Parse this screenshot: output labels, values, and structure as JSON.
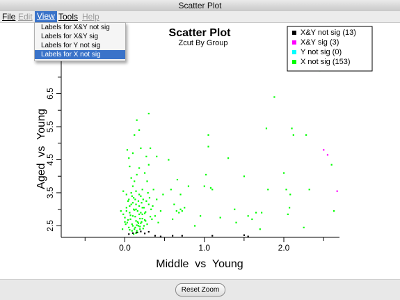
{
  "window": {
    "title": "Scatter Plot"
  },
  "menu": {
    "file": "File",
    "edit": "Edit",
    "view": "View",
    "tools": "Tools",
    "help": "Help"
  },
  "view_menu": {
    "items": [
      {
        "label": "Labels for X&Y not sig",
        "selected": false
      },
      {
        "label": "Labels for X&Y sig",
        "selected": false
      },
      {
        "label": "Labels for Y not sig",
        "selected": false
      },
      {
        "label": "Labels for X not sig",
        "selected": true
      }
    ]
  },
  "footer": {
    "reset_label": "Reset Zoom"
  },
  "chart_data": {
    "type": "scatter",
    "title": "Scatter Plot",
    "subtitle": "Zcut By Group",
    "xlabel": "Middle  vs  Young",
    "ylabel": "Aged  vs  Young",
    "xlim": [
      -0.8,
      2.7
    ],
    "ylim": [
      2.15,
      7.65
    ],
    "x_ticks": [
      0.0,
      1.0,
      2.0
    ],
    "x_tick_labels": [
      "0.0",
      "1.0",
      "2.0"
    ],
    "y_ticks": [
      2.5,
      3.5,
      4.5,
      5.5,
      6.5
    ],
    "y_tick_labels": [
      "2.5",
      "3.5",
      "4.5",
      "5.5",
      "6.5"
    ],
    "legend_position": "top-right",
    "series": [
      {
        "name": "X&Y not sig (13)",
        "color": "#000000",
        "points": [
          [
            0.05,
            2.25
          ],
          [
            0.1,
            2.28
          ],
          [
            0.15,
            2.3
          ],
          [
            0.2,
            2.33
          ],
          [
            0.25,
            2.27
          ],
          [
            0.3,
            2.32
          ],
          [
            0.38,
            2.2
          ],
          [
            0.45,
            2.18
          ],
          [
            0.6,
            2.2
          ],
          [
            0.72,
            2.2
          ],
          [
            1.1,
            2.2
          ],
          [
            1.5,
            2.22
          ],
          [
            1.55,
            2.18
          ]
        ]
      },
      {
        "name": "X&Y sig (3)",
        "color": "#ff00ff",
        "points": [
          [
            2.5,
            4.8
          ],
          [
            2.55,
            4.65
          ],
          [
            2.67,
            3.55
          ]
        ]
      },
      {
        "name": "Y not sig (0)",
        "color": "#00ffff",
        "points": []
      },
      {
        "name": "X not sig (153)",
        "color": "#00ff00",
        "points": [
          [
            -0.05,
            2.95
          ],
          [
            -0.02,
            2.85
          ],
          [
            0.0,
            2.75
          ],
          [
            0.02,
            3.05
          ],
          [
            0.03,
            2.6
          ],
          [
            0.05,
            2.45
          ],
          [
            0.06,
            2.9
          ],
          [
            0.07,
            2.7
          ],
          [
            0.08,
            3.15
          ],
          [
            0.09,
            2.55
          ],
          [
            0.1,
            2.8
          ],
          [
            0.11,
            3.0
          ],
          [
            0.12,
            2.4
          ],
          [
            0.13,
            3.3
          ],
          [
            0.14,
            2.65
          ],
          [
            0.15,
            2.35
          ],
          [
            0.16,
            2.95
          ],
          [
            0.17,
            2.5
          ],
          [
            0.18,
            3.1
          ],
          [
            0.19,
            2.72
          ],
          [
            0.2,
            2.58
          ],
          [
            0.21,
            3.2
          ],
          [
            0.22,
            2.85
          ],
          [
            0.23,
            2.42
          ],
          [
            0.24,
            3.05
          ],
          [
            0.25,
            2.68
          ],
          [
            0.26,
            2.92
          ],
          [
            0.28,
            2.55
          ],
          [
            0.3,
            3.15
          ],
          [
            0.32,
            2.78
          ],
          [
            0.0,
            2.62
          ],
          [
            0.04,
            3.25
          ],
          [
            0.06,
            2.38
          ],
          [
            0.09,
            3.4
          ],
          [
            0.12,
            2.98
          ],
          [
            0.14,
            3.55
          ],
          [
            0.16,
            2.3
          ],
          [
            0.18,
            3.45
          ],
          [
            0.2,
            2.9
          ],
          [
            0.22,
            3.6
          ],
          [
            0.24,
            2.5
          ],
          [
            0.1,
            3.7
          ],
          [
            0.12,
            3.85
          ],
          [
            0.15,
            4.05
          ],
          [
            0.08,
            3.95
          ],
          [
            0.18,
            4.25
          ],
          [
            0.05,
            4.55
          ],
          [
            0.1,
            4.7
          ],
          [
            0.2,
            4.85
          ],
          [
            0.12,
            5.25
          ],
          [
            0.15,
            5.7
          ],
          [
            0.18,
            5.4
          ],
          [
            0.3,
            5.9
          ],
          [
            0.03,
            4.8
          ],
          [
            0.06,
            4.3
          ],
          [
            -0.02,
            3.55
          ],
          [
            0.02,
            3.45
          ],
          [
            0.35,
            3.1
          ],
          [
            0.38,
            2.8
          ],
          [
            0.4,
            3.3
          ],
          [
            0.42,
            2.6
          ],
          [
            0.45,
            2.95
          ],
          [
            0.48,
            3.45
          ],
          [
            0.36,
            3.6
          ],
          [
            0.28,
            3.85
          ],
          [
            0.25,
            4.1
          ],
          [
            0.3,
            4.35
          ],
          [
            0.27,
            4.6
          ],
          [
            0.32,
            4.85
          ],
          [
            0.4,
            4.6
          ],
          [
            0.55,
            4.5
          ],
          [
            0.62,
            3.15
          ],
          [
            0.65,
            2.95
          ],
          [
            0.68,
            2.9
          ],
          [
            0.7,
            3.0
          ],
          [
            0.72,
            2.95
          ],
          [
            0.75,
            3.05
          ],
          [
            0.6,
            2.7
          ],
          [
            0.58,
            3.6
          ],
          [
            0.66,
            3.9
          ],
          [
            0.7,
            3.45
          ],
          [
            0.8,
            3.7
          ],
          [
            0.88,
            2.5
          ],
          [
            0.95,
            2.8
          ],
          [
            1.0,
            3.7
          ],
          [
            1.02,
            4.05
          ],
          [
            1.05,
            4.9
          ],
          [
            1.05,
            5.25
          ],
          [
            1.08,
            3.65
          ],
          [
            1.1,
            3.6
          ],
          [
            1.2,
            2.75
          ],
          [
            1.3,
            4.55
          ],
          [
            1.38,
            3.0
          ],
          [
            1.4,
            2.6
          ],
          [
            1.5,
            4.0
          ],
          [
            1.55,
            2.8
          ],
          [
            1.6,
            2.7
          ],
          [
            1.65,
            2.9
          ],
          [
            1.7,
            2.4
          ],
          [
            1.72,
            2.9
          ],
          [
            1.78,
            5.45
          ],
          [
            1.8,
            3.6
          ],
          [
            1.88,
            6.4
          ],
          [
            2.0,
            4.1
          ],
          [
            2.03,
            3.6
          ],
          [
            2.05,
            2.85
          ],
          [
            2.07,
            3.05
          ],
          [
            2.08,
            3.45
          ],
          [
            2.1,
            5.45
          ],
          [
            2.12,
            5.25
          ],
          [
            2.25,
            2.45
          ],
          [
            2.28,
            5.25
          ],
          [
            2.32,
            3.6
          ],
          [
            2.45,
            7.2
          ],
          [
            2.6,
            4.35
          ],
          [
            2.63,
            2.95
          ],
          [
            -0.03,
            2.4
          ],
          [
            0.01,
            2.55
          ],
          [
            0.04,
            2.68
          ],
          [
            0.07,
            2.82
          ],
          [
            0.1,
            2.5
          ],
          [
            0.13,
            2.78
          ],
          [
            0.16,
            2.62
          ],
          [
            0.19,
            2.4
          ],
          [
            0.22,
            2.72
          ],
          [
            0.25,
            2.88
          ],
          [
            0.27,
            3.25
          ],
          [
            0.29,
            3.5
          ],
          [
            0.31,
            3.35
          ],
          [
            0.33,
            3.0
          ],
          [
            0.05,
            3.3
          ],
          [
            0.08,
            3.5
          ],
          [
            0.11,
            3.35
          ],
          [
            0.14,
            3.15
          ],
          [
            0.17,
            3.25
          ],
          [
            0.2,
            3.4
          ],
          [
            0.23,
            3.3
          ],
          [
            0.13,
            2.45
          ],
          [
            0.15,
            2.52
          ],
          [
            0.17,
            2.58
          ],
          [
            0.19,
            2.48
          ],
          [
            0.21,
            2.62
          ],
          [
            0.09,
            2.35
          ],
          [
            0.11,
            2.25
          ],
          [
            0.14,
            2.28
          ],
          [
            0.02,
            2.95
          ],
          [
            0.06,
            3.1
          ],
          [
            0.1,
            3.2
          ],
          [
            0.14,
            3.0
          ],
          [
            0.18,
            2.85
          ],
          [
            0.22,
            3.05
          ],
          [
            0.26,
            2.65
          ],
          [
            0.34,
            2.7
          ]
        ]
      }
    ]
  }
}
